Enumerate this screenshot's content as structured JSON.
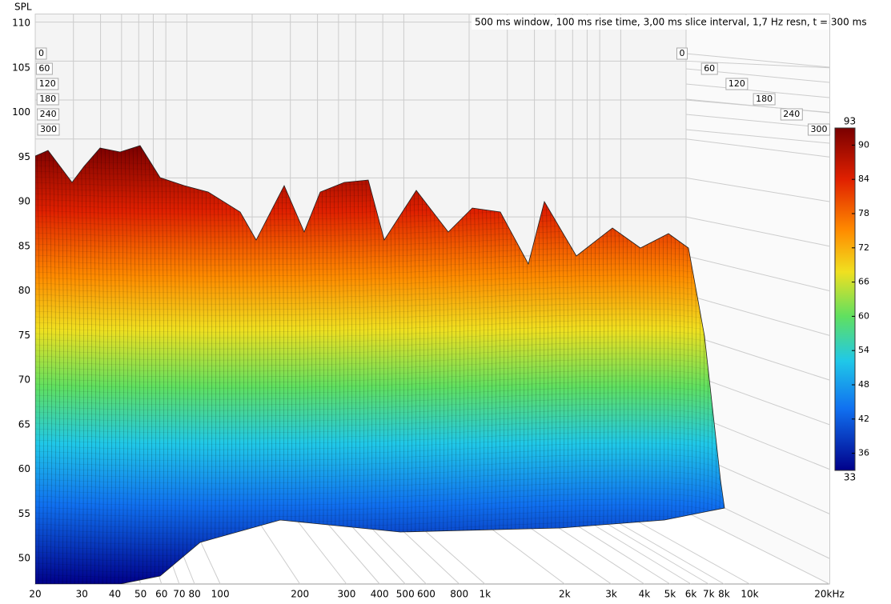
{
  "chart_data": {
    "type": "waterfall",
    "title": "500 ms window, 100 ms rise time, 3,00 ms slice interval, 1,7 Hz resn, t = 300 ms",
    "y_label": "SPL",
    "log_x": true,
    "grid": true,
    "xlim": [
      20,
      20000
    ],
    "xticks": [
      20,
      30,
      40,
      50,
      60,
      70,
      80,
      100,
      200,
      300,
      400,
      500,
      600,
      800,
      {
        "value": 1000,
        "label": "1k"
      },
      {
        "value": 2000,
        "label": "2k"
      },
      {
        "value": 3000,
        "label": "3k"
      },
      {
        "value": 4000,
        "label": "4k"
      },
      {
        "value": 5000,
        "label": "5k"
      },
      {
        "value": 6000,
        "label": "6k"
      },
      {
        "value": 7000,
        "label": "7k"
      },
      {
        "value": 8000,
        "label": "8k"
      },
      {
        "value": 10000,
        "label": "10k"
      },
      {
        "value": 20000,
        "label": "20kHz"
      }
    ],
    "ylim": [
      110,
      50
    ],
    "yticks": [
      110,
      105,
      100,
      95,
      90,
      85,
      80,
      75,
      70,
      65,
      60,
      55,
      50
    ],
    "time_lim": [
      0,
      300
    ],
    "time_ticks": [
      0,
      60,
      120,
      180,
      240,
      300
    ],
    "colorbar": {
      "lim": [
        33,
        93
      ],
      "ticks": [
        36,
        42,
        48,
        54,
        60,
        66,
        72,
        78,
        84,
        90
      ]
    }
  }
}
